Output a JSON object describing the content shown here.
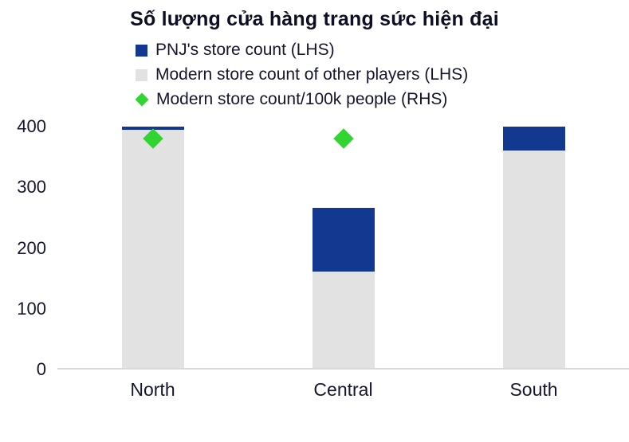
{
  "chart_data": {
    "type": "bar",
    "stacked": true,
    "title": "Số lượng cửa hàng trang sức hiện đại",
    "categories": [
      "North",
      "Central",
      "South"
    ],
    "series": [
      {
        "name": "PNJ's store count (LHS)",
        "color": "#12398f",
        "values": [
          5,
          105,
          40
        ]
      },
      {
        "name": "Modern store count of other players (LHS)",
        "color": "#e2e2e2",
        "values": [
          395,
          160,
          360
        ]
      }
    ],
    "marker_series": {
      "name": "Modern store count/100k people (RHS)",
      "color": "#31d431",
      "values_lhs_scale": [
        380,
        380,
        null
      ]
    },
    "legend": [
      {
        "label": "PNJ's store count (LHS)",
        "shape": "square",
        "color": "#12398f"
      },
      {
        "label": "Modern store count of other players (LHS)",
        "shape": "square",
        "color": "#e2e2e2"
      },
      {
        "label": "Modern store count/100k people (RHS)",
        "shape": "diamond",
        "color": "#31d431"
      }
    ],
    "yticks": [
      0,
      100,
      200,
      300,
      400
    ],
    "ylim": [
      0,
      400
    ],
    "xlabel": "",
    "ylabel": "",
    "grid": false,
    "legend_position": "top-left"
  },
  "colors": {
    "title_text": "#0e0e25",
    "axis_text": "#15152e",
    "axis_line": "#d9d9d9",
    "background": "#ffffff"
  }
}
